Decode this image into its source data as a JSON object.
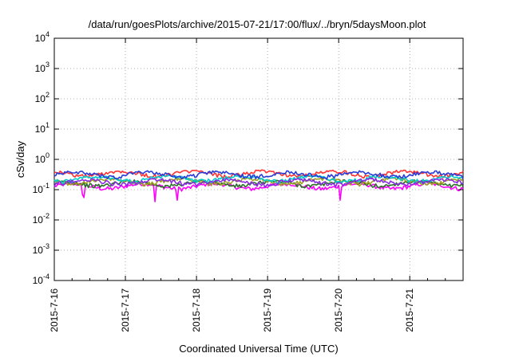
{
  "chart_data": {
    "type": "line",
    "title": "/data/run/goesPlots/archive/2015-07-21/17:00/flux/../bryn/5daysMoon.plot",
    "xlabel": "Coordinated Universal Time (UTC)",
    "ylabel": "cSv/day",
    "y_scale": "log",
    "ylim": [
      0.0001,
      10000
    ],
    "y_ticks": [
      {
        "value": 0.0001,
        "base": "10",
        "exp": "-4"
      },
      {
        "value": 0.001,
        "base": "10",
        "exp": "-3"
      },
      {
        "value": 0.01,
        "base": "10",
        "exp": "-2"
      },
      {
        "value": 0.1,
        "base": "10",
        "exp": "-1"
      },
      {
        "value": 1,
        "base": "10",
        "exp": "0"
      },
      {
        "value": 10,
        "base": "10",
        "exp": "1"
      },
      {
        "value": 100,
        "base": "10",
        "exp": "2"
      },
      {
        "value": 1000,
        "base": "10",
        "exp": "3"
      },
      {
        "value": 10000,
        "base": "10",
        "exp": "4"
      }
    ],
    "x_ticks": [
      "2015-7-16",
      "2015-7-17",
      "2015-7-18",
      "2015-7-19",
      "2015-7-20",
      "2015-7-21"
    ],
    "x_range": [
      "2015-07-16T00:00",
      "2015-07-21T18:00"
    ],
    "grid": true,
    "legend": "none",
    "series": [
      {
        "color": "#ff00ff",
        "base": 0.13,
        "dips": [
          [
            "2015-07-16T09:30",
            0.07
          ],
          [
            "2015-07-16T09:50",
            0.055
          ],
          [
            "2015-07-17T10:10",
            0.04
          ],
          [
            "2015-07-17T17:40",
            0.045
          ],
          [
            "2015-07-20T00:40",
            0.045
          ]
        ]
      },
      {
        "color": "#2a6e2a",
        "base": 0.16,
        "dips": []
      },
      {
        "color": "#ff3333",
        "base": 0.34,
        "dips": []
      },
      {
        "color": "#a0a020",
        "base": 0.19,
        "dips": []
      },
      {
        "color": "#00cccc",
        "base": 0.23,
        "dips": []
      },
      {
        "color": "#8a2be2",
        "base": 0.18,
        "dips": []
      },
      {
        "color": "#2a3cd8",
        "base": 0.32,
        "dips": []
      }
    ]
  }
}
